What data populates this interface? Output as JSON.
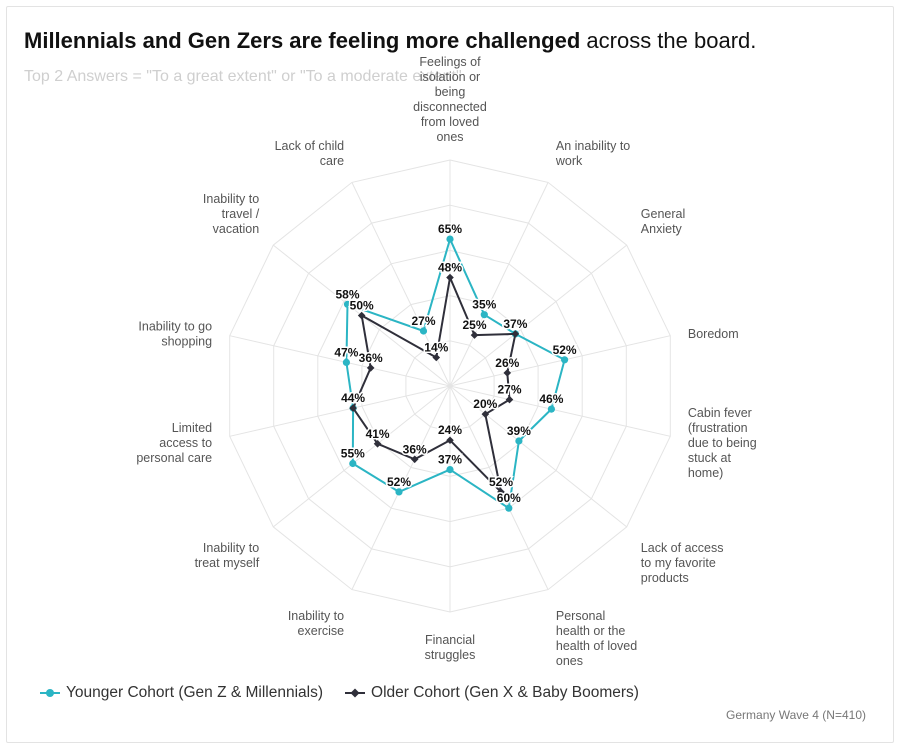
{
  "title_bold": "Millennials and Gen Zers are feeling more challenged",
  "title_rest": " across the board.",
  "subtitle": "Top 2 Answers = \"To a great extent\" or \"To a moderate extent\"",
  "footnote": "Germany Wave 4 (N=410)",
  "chart_data": {
    "type": "radar",
    "title": "Millennials and Gen Zers are feeling more challenged across the board.",
    "subtitle": "Top 2 Answers = \"To a great extent\" or \"To a moderate extent\"",
    "axis_max": 100,
    "grid": true,
    "legend_position": "bottom-left",
    "categories": [
      "Feelings of isolation or being disconnected from loved ones",
      "An inability to work",
      "General Anxiety",
      "Boredom",
      "Cabin fever (frustration due to being stuck at home)",
      "Lack of access to my favorite products",
      "Personal health or the health of loved ones",
      "Financial struggles",
      "Inability to exercise",
      "Inability to treat myself",
      "Limited access to personal care",
      "Inability to go shopping",
      "Inability to travel / vacation",
      "Lack of child care"
    ],
    "category_lines": [
      [
        "Feelings of",
        "isolation or",
        "being",
        "disconnected",
        "from loved",
        "ones"
      ],
      [
        "An inability to",
        "work"
      ],
      [
        "General",
        "Anxiety"
      ],
      [
        "Boredom"
      ],
      [
        "Cabin fever",
        "(frustration",
        "due to being",
        "stuck at",
        "home)"
      ],
      [
        "Lack of access",
        "to my favorite",
        "products"
      ],
      [
        "Personal",
        "health or the",
        "health of loved",
        "ones"
      ],
      [
        "Financial",
        "struggles"
      ],
      [
        "Inability to",
        "exercise"
      ],
      [
        "Inability to",
        "treat myself"
      ],
      [
        "Limited",
        "access to",
        "personal care"
      ],
      [
        "Inability to go",
        "shopping"
      ],
      [
        "Inability to",
        "travel /",
        "vacation"
      ],
      [
        "Lack of child",
        "care"
      ]
    ],
    "series": [
      {
        "name": "Younger Cohort (Gen Z & Millennials)",
        "color": "#2bb5c4",
        "marker": "circle",
        "values": [
          65,
          35,
          37,
          52,
          46,
          39,
          60,
          37,
          52,
          55,
          44,
          47,
          58,
          27
        ]
      },
      {
        "name": "Older Cohort (Gen X & Baby Boomers)",
        "color": "#2f2f3a",
        "marker": "diamond",
        "values": [
          48,
          25,
          37,
          26,
          27,
          20,
          52,
          24,
          36,
          41,
          44,
          36,
          50,
          14
        ]
      }
    ]
  }
}
